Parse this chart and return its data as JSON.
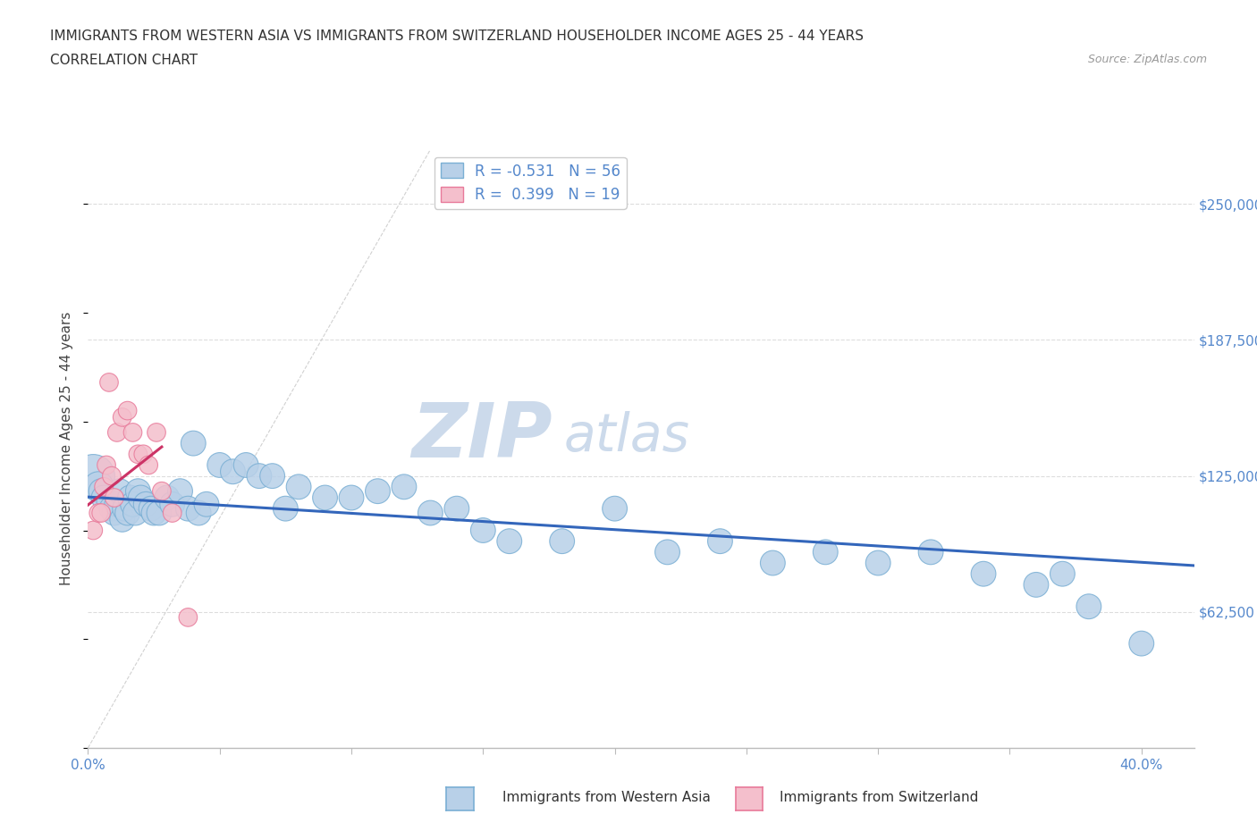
{
  "title_line1": "IMMIGRANTS FROM WESTERN ASIA VS IMMIGRANTS FROM SWITZERLAND HOUSEHOLDER INCOME AGES 25 - 44 YEARS",
  "title_line2": "CORRELATION CHART",
  "source": "Source: ZipAtlas.com",
  "ylabel": "Householder Income Ages 25 - 44 years",
  "xlim": [
    0.0,
    0.42
  ],
  "ylim": [
    0,
    275000
  ],
  "yticks": [
    62500,
    125000,
    187500,
    250000
  ],
  "ytick_labels": [
    "$62,500",
    "$125,000",
    "$187,500",
    "$250,000"
  ],
  "xticks": [
    0.0,
    0.05,
    0.1,
    0.15,
    0.2,
    0.25,
    0.3,
    0.35,
    0.4
  ],
  "blue_color": "#b8d0e8",
  "blue_edge_color": "#7aafd4",
  "pink_color": "#f4bfcc",
  "pink_edge_color": "#e87a9a",
  "blue_line_color": "#3366bb",
  "pink_line_color": "#cc3366",
  "dashed_line_color": "#cccccc",
  "watermark_color": "#ccdaeb",
  "legend_blue_label": "R = -0.531   N = 56",
  "legend_pink_label": "R =  0.399   N = 19",
  "blue_R": -0.531,
  "pink_R": 0.399,
  "legend1_label": "Immigrants from Western Asia",
  "legend2_label": "Immigrants from Switzerland",
  "blue_scatter_x": [
    0.002,
    0.004,
    0.005,
    0.006,
    0.008,
    0.009,
    0.01,
    0.011,
    0.012,
    0.013,
    0.014,
    0.015,
    0.016,
    0.017,
    0.018,
    0.019,
    0.02,
    0.022,
    0.024,
    0.025,
    0.027,
    0.03,
    0.032,
    0.035,
    0.038,
    0.04,
    0.042,
    0.045,
    0.05,
    0.055,
    0.06,
    0.065,
    0.07,
    0.075,
    0.08,
    0.09,
    0.1,
    0.11,
    0.12,
    0.13,
    0.14,
    0.15,
    0.16,
    0.18,
    0.2,
    0.22,
    0.24,
    0.26,
    0.28,
    0.3,
    0.32,
    0.34,
    0.36,
    0.37,
    0.38,
    0.4
  ],
  "blue_scatter_y": [
    125000,
    120000,
    118000,
    115000,
    113000,
    110000,
    108000,
    112000,
    118000,
    105000,
    110000,
    108000,
    115000,
    112000,
    108000,
    118000,
    115000,
    112000,
    110000,
    108000,
    108000,
    115000,
    112000,
    118000,
    110000,
    140000,
    108000,
    112000,
    130000,
    127000,
    130000,
    125000,
    125000,
    110000,
    120000,
    115000,
    115000,
    118000,
    120000,
    108000,
    110000,
    100000,
    95000,
    95000,
    110000,
    90000,
    95000,
    85000,
    90000,
    85000,
    90000,
    80000,
    75000,
    80000,
    65000,
    48000
  ],
  "blue_scatter_size": [
    1200,
    600,
    400,
    400,
    400,
    400,
    400,
    400,
    400,
    400,
    400,
    400,
    400,
    400,
    400,
    400,
    400,
    400,
    400,
    400,
    400,
    400,
    400,
    400,
    400,
    400,
    400,
    400,
    400,
    400,
    400,
    400,
    400,
    400,
    400,
    400,
    400,
    400,
    400,
    400,
    400,
    400,
    400,
    400,
    400,
    400,
    400,
    400,
    400,
    400,
    400,
    400,
    400,
    400,
    400,
    400
  ],
  "pink_scatter_x": [
    0.002,
    0.004,
    0.005,
    0.006,
    0.007,
    0.008,
    0.009,
    0.01,
    0.011,
    0.013,
    0.015,
    0.017,
    0.019,
    0.021,
    0.023,
    0.026,
    0.028,
    0.032,
    0.038
  ],
  "pink_scatter_y": [
    100000,
    108000,
    108000,
    120000,
    130000,
    168000,
    125000,
    115000,
    145000,
    152000,
    155000,
    145000,
    135000,
    135000,
    130000,
    145000,
    118000,
    108000,
    60000
  ],
  "pink_scatter_size": [
    220,
    220,
    220,
    220,
    220,
    220,
    220,
    220,
    220,
    220,
    220,
    220,
    220,
    220,
    220,
    220,
    220,
    220,
    220
  ],
  "background_color": "#ffffff",
  "grid_color": "#dddddd",
  "tick_color": "#5588cc",
  "label_color": "#444444"
}
